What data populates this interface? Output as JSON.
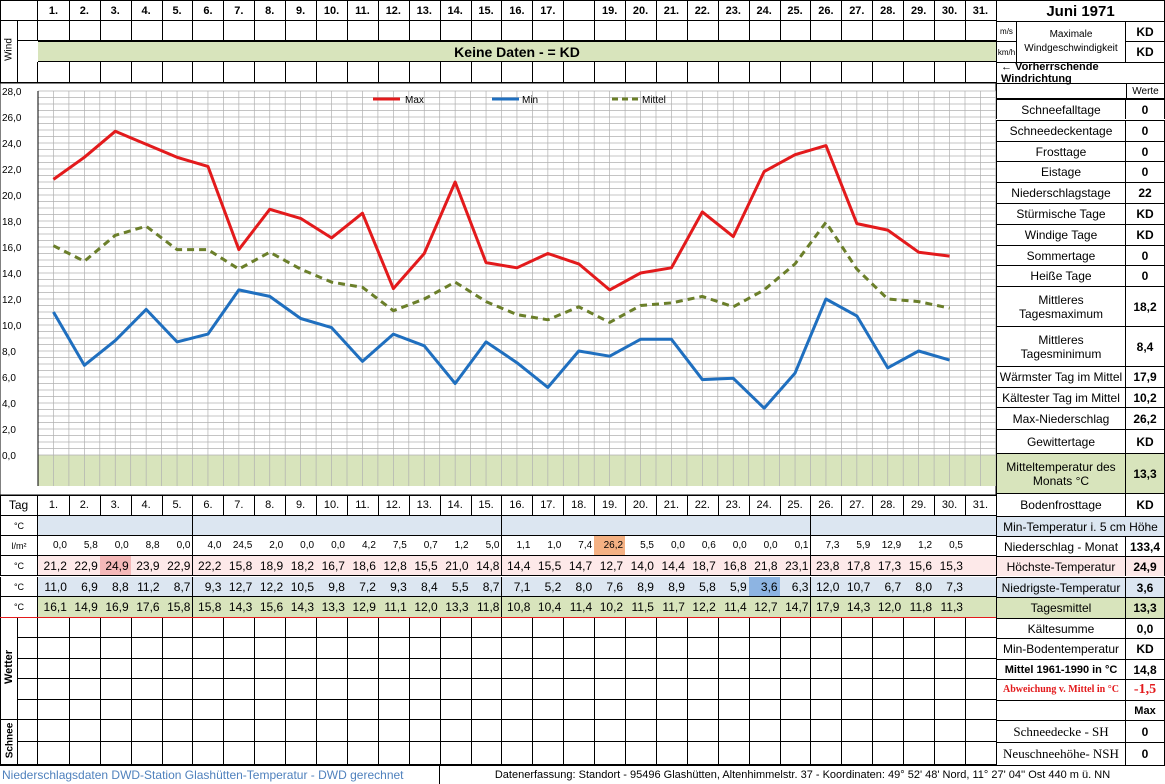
{
  "page": {
    "month_title": "Juni 1971",
    "wind_label": "Wind",
    "keine_daten": "Keine Daten -  = KD",
    "wind_units": [
      "m/s",
      "km/h"
    ],
    "wind_max_label": "Maximale Windgeschwindigkeit",
    "wind_values": [
      "KD",
      "KD"
    ],
    "wind_direction_label": "← Vorherrschende Windrichtung",
    "werte_label": "Werte",
    "tag_label": "Tag",
    "wetter_label": "Wetter",
    "schnee_label": "Schnee",
    "footer_left": "Niederschlagsdaten DWD-Station Glashütten-Temperatur -  DWD gerechnet",
    "footer_right": "Datenerfassung:  Standort -  95496  Glashütten, Altenhimmelstr. 37 - Koordinaten:  49° 52' 48' Nord,  11° 27' 04'' Ost  440 m ü. NN",
    "max_label": "Max",
    "header_days": [
      "1.",
      "2.",
      "3.",
      "4.",
      "5.",
      "6.",
      "7.",
      "8.",
      "9.",
      "10.",
      "11.",
      "12.",
      "13.",
      "14.",
      "15.",
      "16.",
      "17.",
      "",
      "19.",
      "20.",
      "21.",
      "22.",
      "23.",
      "24.",
      "25.",
      "26.",
      "27.",
      "28.",
      "29.",
      "30.",
      "31."
    ],
    "tag_days": [
      "1.",
      "2.",
      "3.",
      "4.",
      "5.",
      "6.",
      "7.",
      "8.",
      "9.",
      "10.",
      "11.",
      "12.",
      "13.",
      "14.",
      "15.",
      "16.",
      "17.",
      "18.",
      "19.",
      "20.",
      "21.",
      "22.",
      "23.",
      "24.",
      "25.",
      "26.",
      "27.",
      "28.",
      "29.",
      "30.",
      "31."
    ]
  },
  "rows": [
    {
      "unit": "°C",
      "values": [],
      "bg": "#dce6f1",
      "label": "Min-Temperatur i. 5 cm Höhe",
      "value": "",
      "label_bold": false
    },
    {
      "unit": "l/m²",
      "values": [
        "0,0",
        "5,8",
        "0,0",
        "8,8",
        "0,0",
        "4,0",
        "24,5",
        "2,0",
        "0,0",
        "0,0",
        "4,2",
        "7,5",
        "0,7",
        "1,2",
        "5,0",
        "1,1",
        "1,0",
        "7,4",
        "26,2",
        "5,5",
        "0,0",
        "0,6",
        "0,0",
        "0,0",
        "0,1",
        "7,3",
        "5,9",
        "12,9",
        "1,2",
        "0,5",
        ""
      ],
      "bg": "#ffffff",
      "label": "Niederschlag - Monat",
      "value": "133,4",
      "label_bold": false
    },
    {
      "unit": "°C",
      "values": [
        "21,2",
        "22,9",
        "24,9",
        "23,9",
        "22,9",
        "22,2",
        "15,8",
        "18,9",
        "18,2",
        "16,7",
        "18,6",
        "12,8",
        "15,5",
        "21,0",
        "14,8",
        "14,4",
        "15,5",
        "14,7",
        "12,7",
        "14,0",
        "14,4",
        "18,7",
        "16,8",
        "21,8",
        "23,1",
        "23,8",
        "17,8",
        "17,3",
        "15,6",
        "15,3",
        ""
      ],
      "bg": "#fde9e9",
      "label": "Höchste-Temperatur",
      "value": "24,9",
      "label_bold": false
    },
    {
      "unit": "°C",
      "values": [
        "11,0",
        "6,9",
        "8,8",
        "11,2",
        "8,7",
        "9,3",
        "12,7",
        "12,2",
        "10,5",
        "9,8",
        "7,2",
        "9,3",
        "8,4",
        "5,5",
        "8,7",
        "7,1",
        "5,2",
        "8,0",
        "7,6",
        "8,9",
        "8,9",
        "5,8",
        "5,9",
        "3,6",
        "6,3",
        "12,0",
        "10,7",
        "6,7",
        "8,0",
        "7,3",
        ""
      ],
      "bg": "#dce6f1",
      "label": "Niedrigste-Temperatur",
      "value": "3,6",
      "label_bold": false
    },
    {
      "unit": "°C",
      "values": [
        "16,1",
        "14,9",
        "16,9",
        "17,6",
        "15,8",
        "15,8",
        "14,3",
        "15,6",
        "14,3",
        "13,3",
        "12,9",
        "11,1",
        "12,0",
        "13,3",
        "11,8",
        "10,8",
        "10,4",
        "11,4",
        "10,2",
        "11,5",
        "11,7",
        "12,2",
        "11,4",
        "12,7",
        "14,7",
        "17,9",
        "14,3",
        "12,0",
        "11,8",
        "11,3",
        ""
      ],
      "bg": "#d8e4bc",
      "label": "Tagesmittel",
      "value": "13,3",
      "label_bold": false
    }
  ],
  "sidebar": [
    {
      "label": "Schneefalltage",
      "value": "0"
    },
    {
      "label": "Schneedeckentage",
      "value": "0"
    },
    {
      "label": "Frosttage",
      "value": "0"
    },
    {
      "label": "Eistage",
      "value": "0"
    },
    {
      "label": "Niederschlagstage",
      "value": "22"
    },
    {
      "label": "Stürmische Tage",
      "value": "KD"
    },
    {
      "label": "Windige Tage",
      "value": "KD"
    },
    {
      "label": "Sommertage",
      "value": "0"
    },
    {
      "label": "Heiße Tage",
      "value": "0"
    },
    {
      "label": "Mittleres Tagesmaximum",
      "value": "18,2"
    },
    {
      "label": "Mittleres Tagesminimum",
      "value": "8,4"
    },
    {
      "label": "Wärmster Tag im Mittel",
      "value": "17,9"
    },
    {
      "label": "Kältester Tag im Mittel",
      "value": "10,2"
    },
    {
      "label": "Max-Niederschlag",
      "value": "26,2"
    },
    {
      "label": "Gewittertage",
      "value": "KD"
    },
    {
      "label": "Mitteltemperatur des Monats °C",
      "value": "13,3"
    },
    {
      "label": "Bodenfrosttage",
      "value": "KD"
    }
  ],
  "summary": [
    {
      "label": "Kältesumme",
      "value": "0,0"
    },
    {
      "label": "Min-Bodentemperatur",
      "value": "KD"
    },
    {
      "label": "Mittel 1961-1990 in °C",
      "value": "14,8"
    },
    {
      "label": "Abweichung v. Mittel in °C",
      "value": "-1,5"
    }
  ],
  "snow": [
    {
      "label": "Schneedecke -  SH",
      "value": "0"
    },
    {
      "label": "Neuschneehöhe- NSH",
      "value": "0"
    }
  ],
  "colors": {
    "max": "#e31a1c",
    "min": "#1f6fbf",
    "mittel": "#6b7f2a",
    "grid": "#b0b0b0",
    "green_band": "#d8e4bc",
    "hi_cold": "#8db4e2",
    "hi_warm": "#f4b183",
    "hi_hot": "#f4b8b8"
  },
  "chart_data": {
    "type": "line",
    "x": [
      1,
      2,
      3,
      4,
      5,
      6,
      7,
      8,
      9,
      10,
      11,
      12,
      13,
      14,
      15,
      16,
      17,
      18,
      19,
      20,
      21,
      22,
      23,
      24,
      25,
      26,
      27,
      28,
      29,
      30
    ],
    "ylim": [
      0,
      28
    ],
    "yticks": [
      "0,0",
      "2,0",
      "4,0",
      "6,0",
      "8,0",
      "10,0",
      "12,0",
      "14,0",
      "16,0",
      "18,0",
      "20,0",
      "22,0",
      "24,0",
      "26,0",
      "28,0"
    ],
    "grid": true,
    "legend_position": "top",
    "series": [
      {
        "name": "Max",
        "style": "solid",
        "values": [
          21.2,
          22.9,
          24.9,
          23.9,
          22.9,
          22.2,
          15.8,
          18.9,
          18.2,
          16.7,
          18.6,
          12.8,
          15.5,
          21.0,
          14.8,
          14.4,
          15.5,
          14.7,
          12.7,
          14.0,
          14.4,
          18.7,
          16.8,
          21.8,
          23.1,
          23.8,
          17.8,
          17.3,
          15.6,
          15.3
        ]
      },
      {
        "name": "Min",
        "style": "solid",
        "values": [
          11.0,
          6.9,
          8.8,
          11.2,
          8.7,
          9.3,
          12.7,
          12.2,
          10.5,
          9.8,
          7.2,
          9.3,
          8.4,
          5.5,
          8.7,
          7.1,
          5.2,
          8.0,
          7.6,
          8.9,
          8.9,
          5.8,
          5.9,
          3.6,
          6.3,
          12.0,
          10.7,
          6.7,
          8.0,
          7.3
        ]
      },
      {
        "name": "Mittel",
        "style": "dashed",
        "values": [
          16.1,
          14.9,
          16.9,
          17.6,
          15.8,
          15.8,
          14.3,
          15.6,
          14.3,
          13.3,
          12.9,
          11.1,
          12.0,
          13.3,
          11.8,
          10.8,
          10.4,
          11.4,
          10.2,
          11.5,
          11.7,
          12.2,
          11.4,
          12.7,
          14.7,
          17.9,
          14.3,
          12.0,
          11.8,
          11.3
        ]
      }
    ]
  }
}
